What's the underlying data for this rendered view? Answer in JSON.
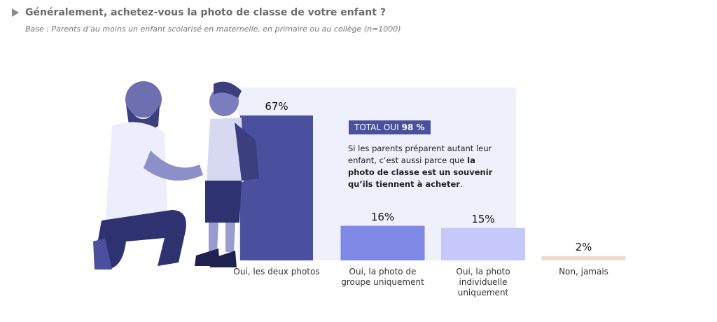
{
  "chart_data": {
    "type": "bar",
    "title": "Généralement, achetez-vous la photo de classe de votre enfant ?",
    "subtitle": "Base : Parents d’au moins un enfant scolarisé en maternelle, en primaire ou au collège (n=1000)",
    "categories": [
      "Oui, les deux photos",
      "Oui, la photo de groupe uniquement",
      "Oui, la photo individuelle uniquement",
      "Non, jamais"
    ],
    "values": [
      67,
      16,
      15,
      2
    ],
    "value_labels": [
      "67%",
      "16%",
      "15%",
      "2%"
    ],
    "colors": [
      "#4a4f9e",
      "#8088e6",
      "#c5c8f8",
      "#ecdccb"
    ],
    "total_label": "TOTAL OUI",
    "total_value": "98 %",
    "annotation": [
      "Si les parents préparent autant leur enfant, c’est aussi parce que ",
      "la photo de classe est un souvenir qu’ils tiennent à acheter",
      "."
    ]
  }
}
